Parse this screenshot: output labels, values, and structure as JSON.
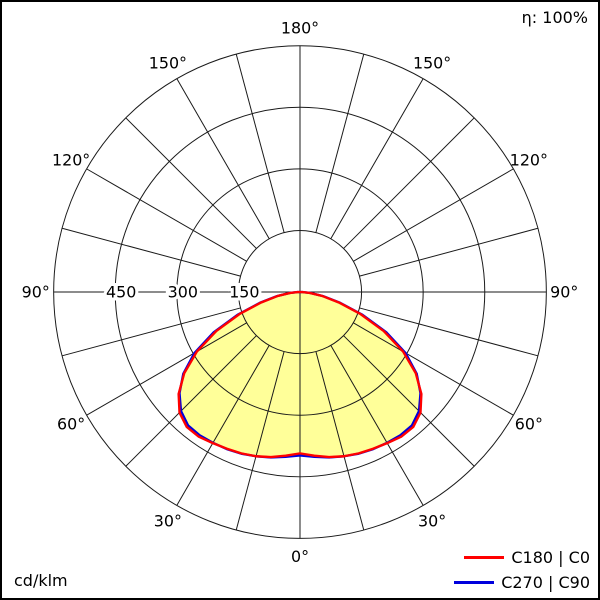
{
  "chart_data": {
    "type": "polar",
    "unit_label": "cd/klm",
    "efficiency_label": "η: 100%",
    "max_value": 600,
    "rings": [
      150,
      300,
      450,
      600
    ],
    "ring_labels": [
      450,
      300,
      150
    ],
    "grid_step_deg": 15,
    "angle_label_step_deg": 30,
    "angle_labels": [
      {
        "gamma": 0,
        "text": "0°"
      },
      {
        "gamma": 30,
        "text": "30°"
      },
      {
        "gamma": 60,
        "text": "60°"
      },
      {
        "gamma": 90,
        "text": "90°"
      },
      {
        "gamma": 120,
        "text": "120°"
      },
      {
        "gamma": 150,
        "text": "150°"
      },
      {
        "gamma": 180,
        "text": "180°"
      }
    ],
    "gamma_deg": [
      0,
      5,
      10,
      15,
      20,
      25,
      30,
      35,
      40,
      45,
      50,
      55,
      60,
      65,
      70,
      75,
      80,
      85,
      90
    ],
    "series": [
      {
        "name": "C180 | C0",
        "color": "#ff0000",
        "values": [
          393,
          400,
          408,
          414,
          418,
          421,
          425,
          430,
          429,
          415,
          386,
          344,
          290,
          225,
          157,
          98,
          55,
          24,
          6
        ]
      },
      {
        "name": "C270 | C90",
        "color": "#0000dd",
        "values": [
          398,
          403,
          409,
          414,
          419,
          422,
          424,
          426,
          424,
          410,
          383,
          347,
          297,
          232,
          162,
          101,
          57,
          25,
          6
        ]
      }
    ],
    "fill_color": "#ffff99",
    "grid_color": "#1a1a1a",
    "text_color": "#000000"
  }
}
